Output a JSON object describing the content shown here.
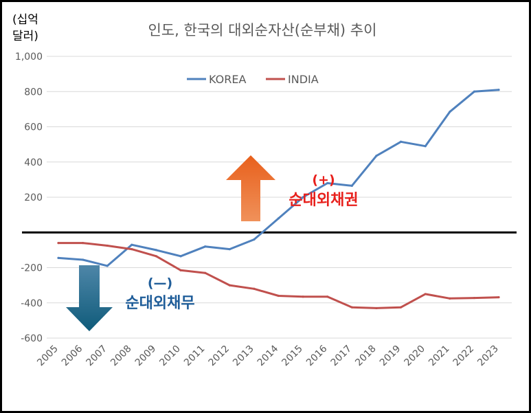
{
  "chart_data": {
    "type": "line",
    "title": "인도, 한국의 대외순자산(순부채) 추이",
    "ylabel_line1": "(십억",
    "ylabel_line2": "달러)",
    "ylim": [
      -600,
      1000
    ],
    "yticks": [
      -600,
      -400,
      -200,
      200,
      400,
      600,
      800,
      1000
    ],
    "ytick_labels": [
      "-600",
      "-400",
      "-200",
      "200",
      "400",
      "600",
      "800",
      "1,000"
    ],
    "grid": true,
    "legend_position": "top-center",
    "categories": [
      "2005",
      "2006",
      "2007",
      "2008",
      "2009",
      "2010",
      "2011",
      "2012",
      "2013",
      "2014",
      "2015",
      "2016",
      "2017",
      "2018",
      "2019",
      "2020",
      "2021",
      "2022",
      "2023"
    ],
    "series": [
      {
        "name": "KOREA",
        "color": "#4f81bd",
        "values": [
          -145,
          -155,
          -190,
          -70,
          -100,
          -135,
          -80,
          -95,
          -40,
          80,
          200,
          280,
          265,
          435,
          515,
          490,
          685,
          800,
          810
        ]
      },
      {
        "name": "INDIA",
        "color": "#c0504d",
        "values": [
          -60,
          -60,
          -75,
          -95,
          -135,
          -215,
          -230,
          -300,
          -320,
          -360,
          -365,
          -365,
          -425,
          -430,
          -425,
          -350,
          -375,
          -372,
          -368
        ]
      }
    ],
    "annotations": {
      "up_sign": "(+)",
      "up_label": "순대외채권",
      "down_sign": "(—)",
      "down_label": "순대외채무"
    },
    "colors": {
      "up_arrow": "#e8762d",
      "down_arrow": "#1f6e8c",
      "up_text": "#e8201c",
      "down_text": "#1f5d99",
      "zero_line": "#000000",
      "grid": "#d9d9d9"
    }
  }
}
